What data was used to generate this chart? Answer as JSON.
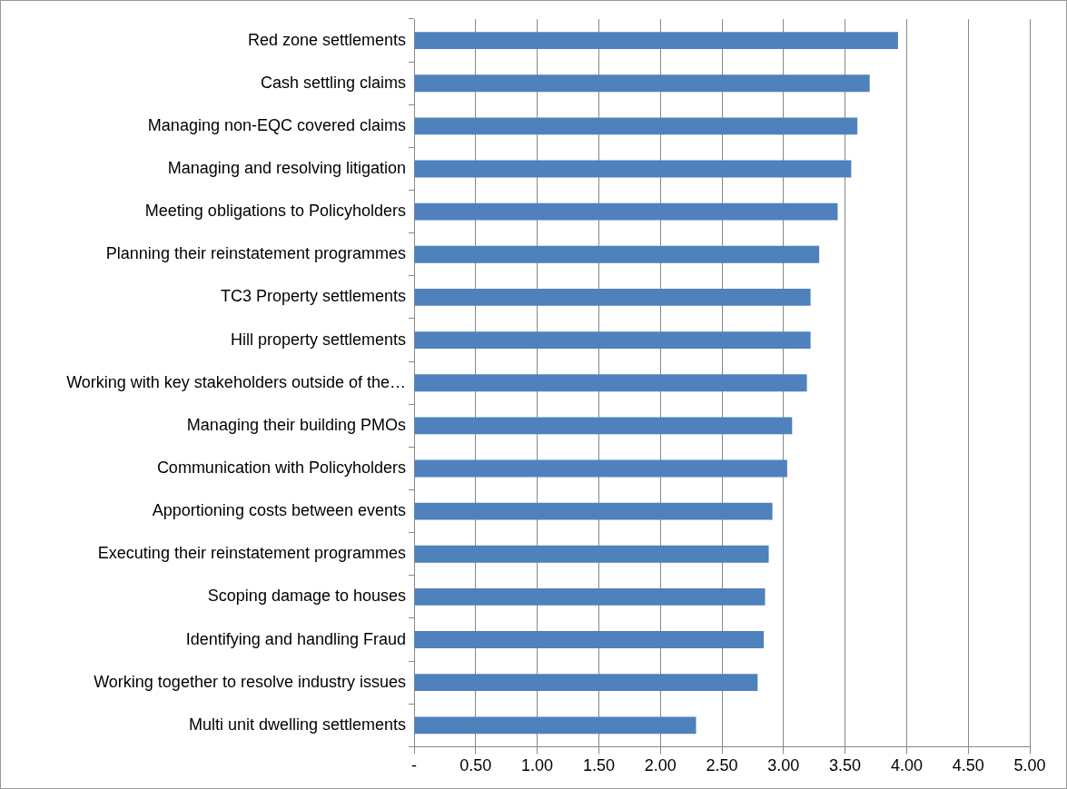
{
  "chart_data": {
    "type": "bar",
    "orientation": "horizontal",
    "color": "#4f81bd",
    "categories": [
      "Red zone settlements",
      "Cash settling claims",
      "Managing non-EQC covered claims",
      "Managing and resolving litigation",
      "Meeting obligations to Policyholders",
      "Planning their reinstatement programmes",
      "TC3 Property settlements",
      "Hill property settlements",
      "Working with key stakeholders outside of the…",
      "Managing their building PMOs",
      "Communication with Policyholders",
      "Apportioning costs between events",
      "Executing their reinstatement programmes",
      "Scoping damage to houses",
      "Identifying and handling Fraud",
      "Working together to resolve industry issues",
      "Multi unit dwelling settlements"
    ],
    "values": [
      3.93,
      3.7,
      3.6,
      3.55,
      3.44,
      3.29,
      3.22,
      3.22,
      3.19,
      3.07,
      3.03,
      2.91,
      2.88,
      2.85,
      2.84,
      2.79,
      2.29
    ],
    "xlim": [
      0,
      5
    ],
    "xticks": [
      {
        "value": 0,
        "label": "-"
      },
      {
        "value": 0.5,
        "label": "0.50"
      },
      {
        "value": 1,
        "label": "1.00"
      },
      {
        "value": 1.5,
        "label": "1.50"
      },
      {
        "value": 2,
        "label": "2.00"
      },
      {
        "value": 2.5,
        "label": "2.50"
      },
      {
        "value": 3,
        "label": "3.00"
      },
      {
        "value": 3.5,
        "label": "3.50"
      },
      {
        "value": 4,
        "label": "4.00"
      },
      {
        "value": 4.5,
        "label": "4.50"
      },
      {
        "value": 5,
        "label": "5.00"
      }
    ],
    "grid": "x",
    "legend": false
  }
}
